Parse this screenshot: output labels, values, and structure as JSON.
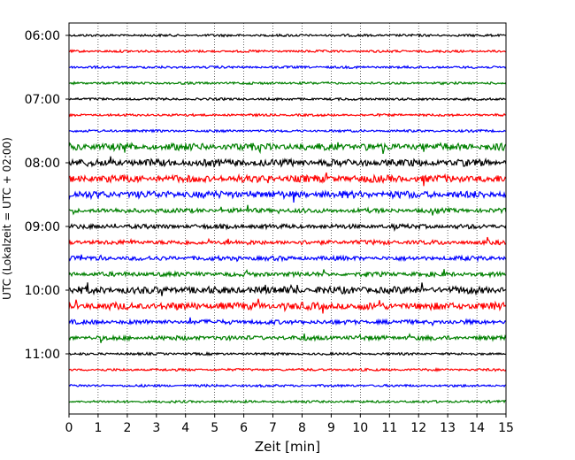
{
  "chart_data": {
    "type": "line",
    "title": "",
    "xlabel": "Zeit  [min]",
    "ylabel": "UTC (Lokalzeit = UTC + 02:00)",
    "xlim": [
      0,
      15
    ],
    "x_ticks": [
      0,
      1,
      2,
      3,
      4,
      5,
      6,
      7,
      8,
      9,
      10,
      11,
      12,
      13,
      14,
      15
    ],
    "y_tick_labels": [
      "06:00",
      "07:00",
      "08:00",
      "09:00",
      "10:00",
      "11:00"
    ],
    "grid": "vertical-dotted",
    "trace_interval_minutes": 15,
    "trace_colors": [
      "#000000",
      "#ff0000",
      "#0000ff",
      "#008000"
    ],
    "series": [
      {
        "start": "06:00",
        "activity": "low"
      },
      {
        "start": "06:15",
        "activity": "low"
      },
      {
        "start": "06:30",
        "activity": "low"
      },
      {
        "start": "06:45",
        "activity": "low"
      },
      {
        "start": "07:00",
        "activity": "low"
      },
      {
        "start": "07:15",
        "activity": "low"
      },
      {
        "start": "07:30",
        "activity": "low"
      },
      {
        "start": "07:45",
        "activity": "high"
      },
      {
        "start": "08:00",
        "activity": "high"
      },
      {
        "start": "08:15",
        "activity": "high"
      },
      {
        "start": "08:30",
        "activity": "high"
      },
      {
        "start": "08:45",
        "activity": "medium"
      },
      {
        "start": "09:00",
        "activity": "medium"
      },
      {
        "start": "09:15",
        "activity": "medium"
      },
      {
        "start": "09:30",
        "activity": "medium"
      },
      {
        "start": "09:45",
        "activity": "medium"
      },
      {
        "start": "10:00",
        "activity": "high"
      },
      {
        "start": "10:15",
        "activity": "high"
      },
      {
        "start": "10:30",
        "activity": "medium"
      },
      {
        "start": "10:45",
        "activity": "medium"
      },
      {
        "start": "11:00",
        "activity": "low"
      },
      {
        "start": "11:15",
        "activity": "low"
      },
      {
        "start": "11:30",
        "activity": "low"
      },
      {
        "start": "11:45",
        "activity": "low"
      }
    ]
  }
}
